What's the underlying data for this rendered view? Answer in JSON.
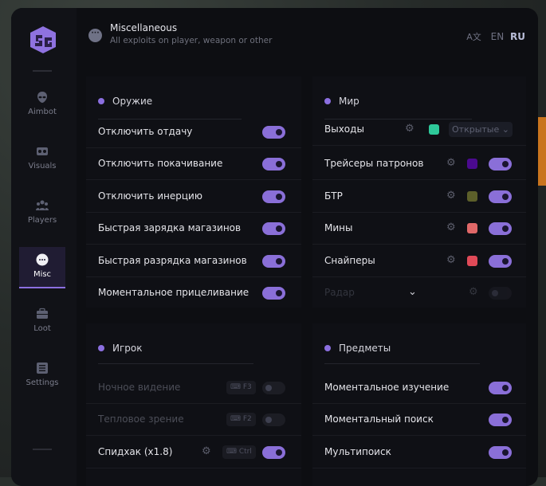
{
  "header": {
    "title": "Miscellaneous",
    "subtitle": "All exploits on player, weapon or other",
    "lang_en": "EN",
    "lang_ru": "RU"
  },
  "sidebar": {
    "items": [
      {
        "label": "Aimbot",
        "icon": "alien-icon"
      },
      {
        "label": "Visuals",
        "icon": "vr-headset-icon"
      },
      {
        "label": "Players",
        "icon": "users-icon"
      },
      {
        "label": "Misc",
        "icon": "dots-icon",
        "active": true
      },
      {
        "label": "Loot",
        "icon": "briefcase-icon"
      },
      {
        "label": "Settings",
        "icon": "list-icon"
      }
    ]
  },
  "weapon": {
    "title": "Оружие",
    "rows": [
      {
        "label": "Отключить отдачу",
        "on": true
      },
      {
        "label": "Отключить покачивание",
        "on": true
      },
      {
        "label": "Отключить инерцию",
        "on": true
      },
      {
        "label": "Быстрая зарядка магазинов",
        "on": true
      },
      {
        "label": "Быстрая разрядка магазинов",
        "on": true
      },
      {
        "label": "Моментальное прицеливание",
        "on": true
      }
    ]
  },
  "world": {
    "title": "Мир",
    "rows": [
      {
        "label": "Выходы",
        "color": "#2ec99a",
        "select": "Открытые"
      },
      {
        "label": "Трейсеры патронов",
        "color": "#4b0a8f",
        "on": true
      },
      {
        "label": "БТР",
        "color": "#5c5f2a",
        "on": true
      },
      {
        "label": "Мины",
        "color": "#e06868",
        "on": true
      },
      {
        "label": "Снайперы",
        "color": "#e04a58",
        "on": true
      },
      {
        "label": "Радар",
        "on": false,
        "disabled": true
      }
    ]
  },
  "player": {
    "title": "Игрок",
    "rows": [
      {
        "label": "Ночное видение",
        "key": "F3",
        "on": false,
        "disabled": true
      },
      {
        "label": "Тепловое зрение",
        "key": "F2",
        "on": false,
        "disabled": true
      },
      {
        "label": "Спидхак (x1.8)",
        "key": "Ctrl",
        "on": true
      }
    ]
  },
  "items": {
    "title": "Предметы",
    "rows": [
      {
        "label": "Моментальное изучение",
        "on": true
      },
      {
        "label": "Моментальный поиск",
        "on": true
      },
      {
        "label": "Мультипоиск",
        "on": true
      }
    ]
  },
  "colors": {
    "accent": "#8a6fd8",
    "background": "#0d0e12"
  }
}
